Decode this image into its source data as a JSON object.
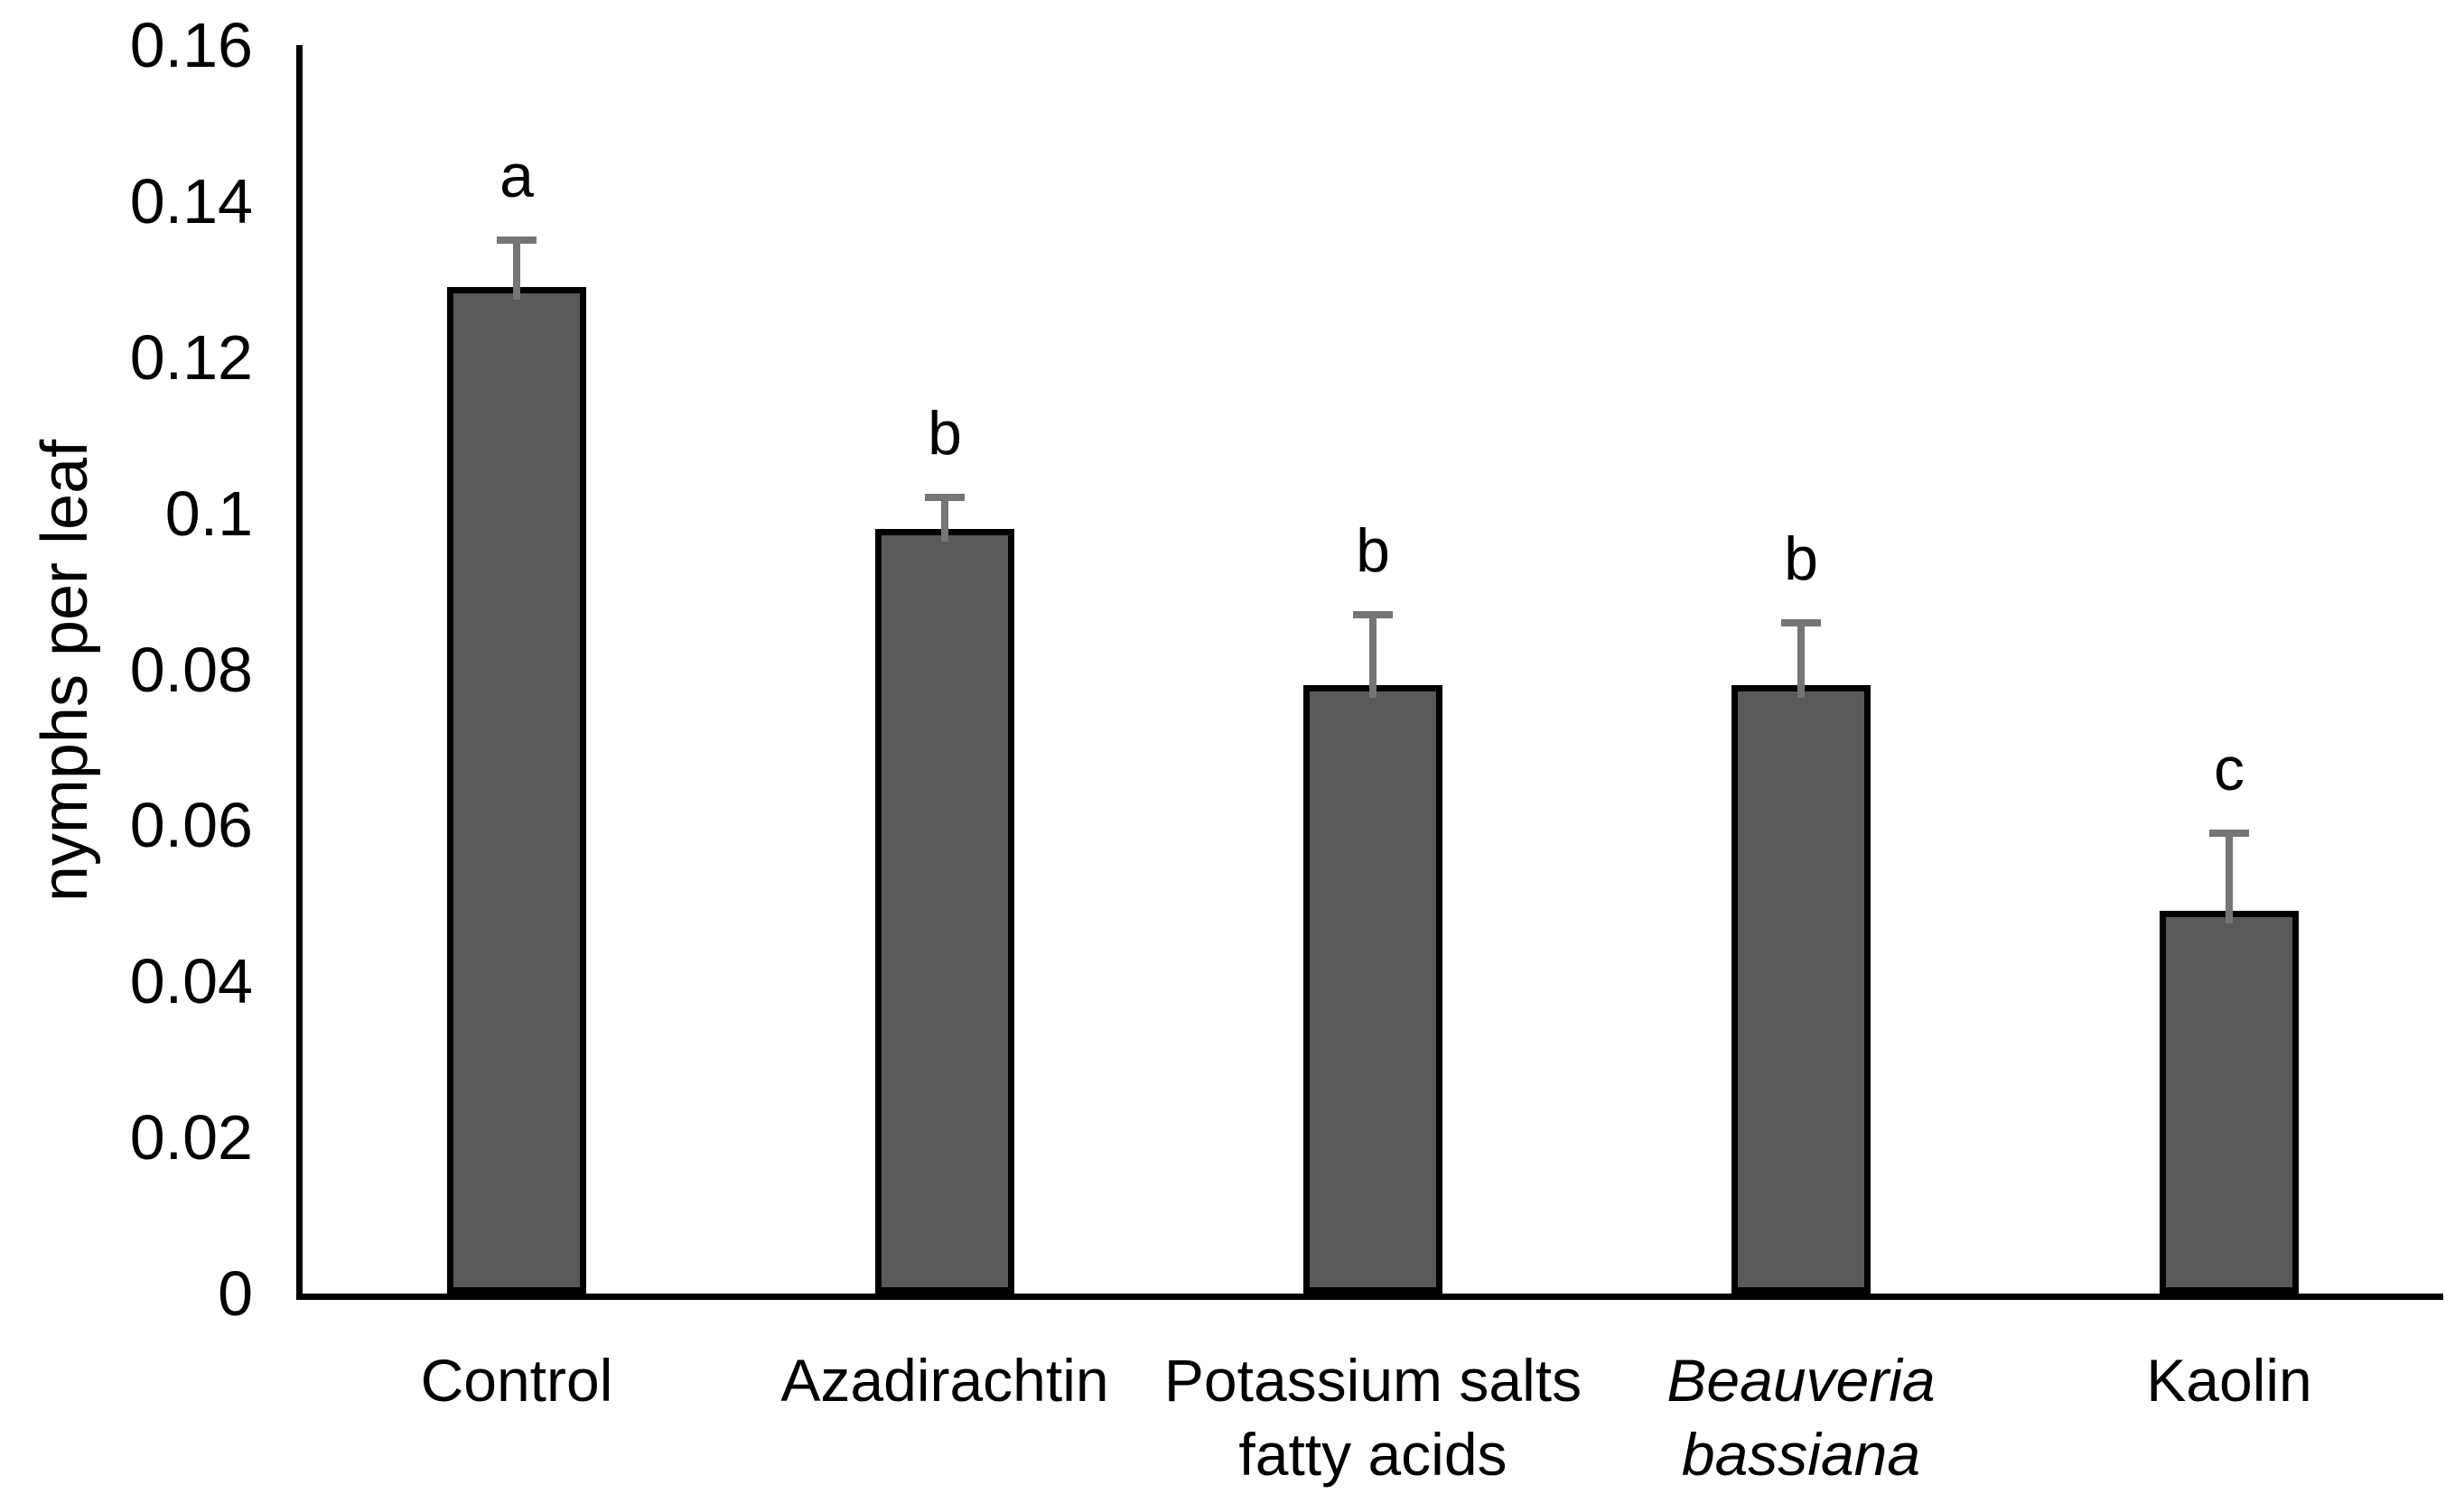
{
  "figure": {
    "background_color": "#ffffff",
    "text_color": "#000000"
  },
  "chart_data": {
    "type": "bar",
    "title": "",
    "xlabel": "",
    "ylabel": "nymphs per leaf",
    "ylim": [
      0,
      0.16
    ],
    "yticks": [
      0,
      0.02,
      0.04,
      0.06,
      0.08,
      0.1,
      0.12,
      0.14,
      0.16
    ],
    "ytick_labels": [
      "0",
      "0.02",
      "0.04",
      "0.06",
      "0.08",
      "0.1",
      "0.12",
      "0.14",
      "0.16"
    ],
    "grid": false,
    "legend": null,
    "categories": [
      "Control",
      "Azadirachtin",
      "Potassium salts fatty acids",
      "Beauveria bassiana",
      "Kaolin"
    ],
    "category_lines": [
      [
        "Control"
      ],
      [
        "Azadirachtin"
      ],
      [
        "Potassium salts",
        "fatty acids"
      ],
      [
        "Beauveria",
        "bassiana"
      ],
      [
        "Kaolin"
      ]
    ],
    "category_italic": [
      false,
      false,
      false,
      true,
      false
    ],
    "values": [
      0.129,
      0.098,
      0.078,
      0.078,
      0.049
    ],
    "errors": [
      0.006,
      0.004,
      0.009,
      0.008,
      0.01
    ],
    "sig_letters": [
      "a",
      "b",
      "b",
      "b",
      "c"
    ],
    "bar_color": "#595959",
    "bar_border_color": "#000000",
    "error_bar_color": "#757575",
    "axis_color": "#000000"
  }
}
